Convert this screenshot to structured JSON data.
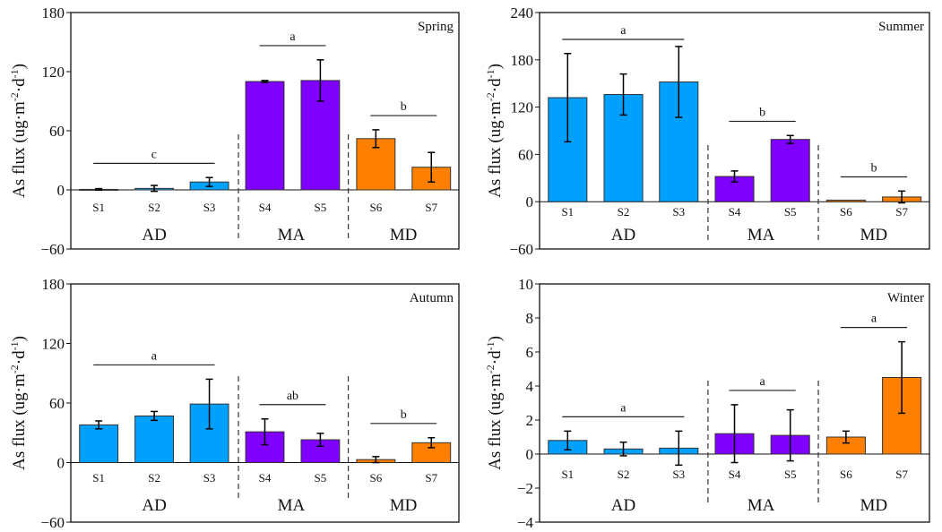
{
  "colors": {
    "AD": "#00a0ff",
    "MA": "#7f00ff",
    "MD": "#ff8000",
    "axis": "#111111",
    "bar_edge": "#333333"
  },
  "chart_data": [
    {
      "type": "bar",
      "title": "Spring",
      "xlabel": "",
      "ylabel": "As flux (ug·m-2·d-1)",
      "ylabel_parts": [
        "As flux (ug·m",
        "-2",
        "·d",
        "-1",
        ")"
      ],
      "ylim": [
        -60,
        180
      ],
      "yticks": [
        -60,
        0,
        60,
        120,
        180
      ],
      "ytick_labels": [
        "−60",
        "0",
        "60",
        "120",
        "180"
      ],
      "categories": [
        "S1",
        "S2",
        "S3",
        "S4",
        "S5",
        "S6",
        "S7"
      ],
      "groups": [
        {
          "name": "AD",
          "members": [
            "S1",
            "S2",
            "S3"
          ],
          "significance": "c"
        },
        {
          "name": "MA",
          "members": [
            "S4",
            "S5"
          ],
          "significance": "a"
        },
        {
          "name": "MD",
          "members": [
            "S6",
            "S7"
          ],
          "significance": "b"
        }
      ],
      "values": [
        0.5,
        1.5,
        8,
        110,
        111,
        52,
        23
      ],
      "errors": [
        0.8,
        3,
        4.5,
        1,
        21,
        9,
        15
      ],
      "grid": false
    },
    {
      "type": "bar",
      "title": "Summer",
      "xlabel": "",
      "ylabel": "As flux (ug·m-2·d-1)",
      "ylabel_parts": [
        "As flux (ug·m",
        "-2",
        "·d",
        "-1",
        ")"
      ],
      "ylim": [
        -60,
        240
      ],
      "yticks": [
        -60,
        0,
        60,
        120,
        180,
        240
      ],
      "ytick_labels": [
        "−60",
        "0",
        "60",
        "120",
        "180",
        "240"
      ],
      "categories": [
        "S1",
        "S2",
        "S3",
        "S4",
        "S5",
        "S6",
        "S7"
      ],
      "groups": [
        {
          "name": "AD",
          "members": [
            "S1",
            "S2",
            "S3"
          ],
          "significance": "a"
        },
        {
          "name": "MA",
          "members": [
            "S4",
            "S5"
          ],
          "significance": "b"
        },
        {
          "name": "MD",
          "members": [
            "S6",
            "S7"
          ],
          "significance": "b"
        }
      ],
      "values": [
        132,
        136,
        152,
        32,
        79,
        2,
        6
      ],
      "errors": [
        56,
        26,
        45,
        7,
        5,
        0,
        7.5
      ],
      "grid": false
    },
    {
      "type": "bar",
      "title": "Autumn",
      "xlabel": "",
      "ylabel": "As flux (ug·m-2·d-1)",
      "ylabel_parts": [
        "As flux (ug·m",
        "-2",
        "·d",
        "-1",
        ")"
      ],
      "ylim": [
        -60,
        180
      ],
      "yticks": [
        -60,
        0,
        60,
        120,
        180
      ],
      "ytick_labels": [
        "−60",
        "0",
        "60",
        "120",
        "180"
      ],
      "categories": [
        "S1",
        "S2",
        "S3",
        "S4",
        "S5",
        "S6",
        "S7"
      ],
      "groups": [
        {
          "name": "AD",
          "members": [
            "S1",
            "S2",
            "S3"
          ],
          "significance": "a"
        },
        {
          "name": "MA",
          "members": [
            "S4",
            "S5"
          ],
          "significance": "ab"
        },
        {
          "name": "MD",
          "members": [
            "S6",
            "S7"
          ],
          "significance": "b"
        }
      ],
      "values": [
        38,
        47,
        59,
        31,
        23,
        3,
        20
      ],
      "errors": [
        4,
        4.5,
        25,
        13,
        6.5,
        3,
        5
      ],
      "grid": false
    },
    {
      "type": "bar",
      "title": "Winter",
      "xlabel": "",
      "ylabel": "As flux (ug·m-2·d-1)",
      "ylabel_parts": [
        "As flux (ug·m",
        "-2",
        "·d",
        "-1",
        ")"
      ],
      "ylim": [
        -4,
        10
      ],
      "yticks": [
        -4,
        -2,
        0,
        2,
        4,
        6,
        8,
        10
      ],
      "ytick_labels": [
        "−4",
        "−2",
        "0",
        "2",
        "4",
        "6",
        "8",
        "10"
      ],
      "categories": [
        "S1",
        "S2",
        "S3",
        "S4",
        "S5",
        "S6",
        "S7"
      ],
      "groups": [
        {
          "name": "AD",
          "members": [
            "S1",
            "S2",
            "S3"
          ],
          "significance": "a"
        },
        {
          "name": "MA",
          "members": [
            "S4",
            "S5"
          ],
          "significance": "a"
        },
        {
          "name": "MD",
          "members": [
            "S6",
            "S7"
          ],
          "significance": "a"
        }
      ],
      "values": [
        0.8,
        0.3,
        0.35,
        1.2,
        1.1,
        1.0,
        4.5
      ],
      "errors": [
        0.55,
        0.4,
        1.0,
        1.7,
        1.5,
        0.35,
        2.1
      ],
      "grid": false
    }
  ]
}
